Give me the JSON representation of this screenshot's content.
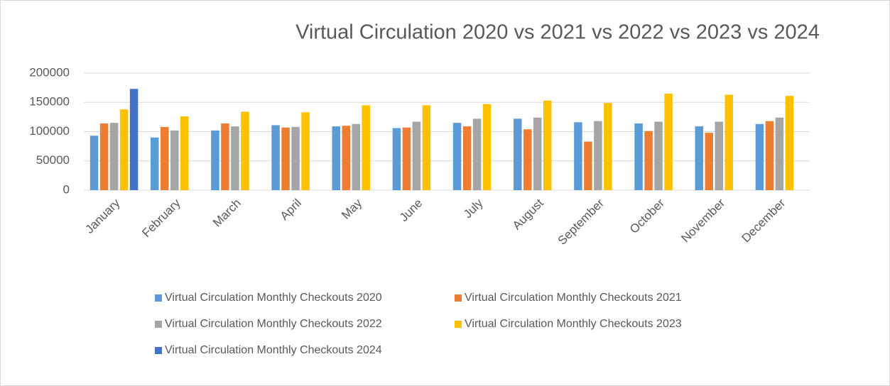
{
  "chart_data": {
    "type": "bar",
    "title": "Virtual Circulation 2020 vs 2021 vs 2022 vs 2023 vs 2024",
    "categories": [
      "January",
      "February",
      "March",
      "April",
      "May",
      "June",
      "July",
      "August",
      "September",
      "October",
      "November",
      "December"
    ],
    "series": [
      {
        "name": "Virtual Circulation Monthly Checkouts 2020",
        "color": "#5b9bd5",
        "values": [
          93000,
          90000,
          102000,
          111000,
          109000,
          106000,
          115000,
          122000,
          116000,
          114000,
          109000,
          113000
        ]
      },
      {
        "name": "Virtual Circulation Monthly Checkouts 2021",
        "color": "#ed7d31",
        "values": [
          114000,
          108000,
          114000,
          107000,
          110000,
          107000,
          109000,
          104000,
          83000,
          101000,
          98000,
          118000
        ]
      },
      {
        "name": "Virtual Circulation Monthly Checkouts 2022",
        "color": "#a5a5a5",
        "values": [
          115000,
          102000,
          109000,
          108000,
          113000,
          117000,
          122000,
          124000,
          118000,
          117000,
          117000,
          124000
        ]
      },
      {
        "name": "Virtual Circulation Monthly Checkouts 2023",
        "color": "#ffc000",
        "values": [
          138000,
          126000,
          134000,
          133000,
          145000,
          145000,
          147000,
          153000,
          149000,
          165000,
          163000,
          161000
        ]
      },
      {
        "name": "Virtual Circulation Monthly Checkouts 2024",
        "color": "#4472c4",
        "values": [
          173000,
          null,
          null,
          null,
          null,
          null,
          null,
          null,
          null,
          null,
          null,
          null
        ]
      }
    ],
    "ylim": [
      0,
      200000
    ],
    "yticks": [
      0,
      50000,
      100000,
      150000,
      200000
    ],
    "grid": true
  }
}
